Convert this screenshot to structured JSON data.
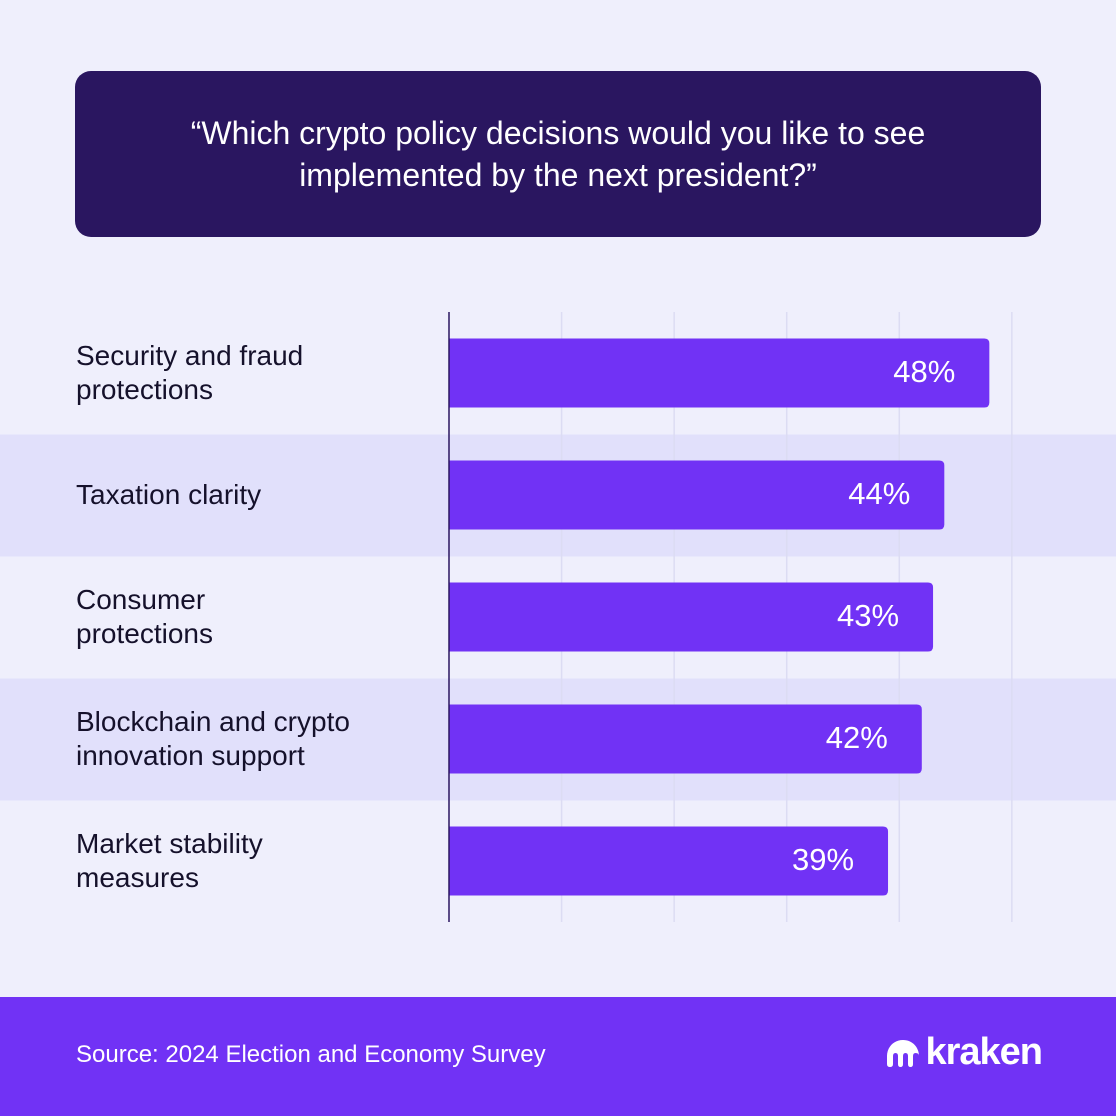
{
  "chart_data": {
    "type": "bar",
    "orientation": "horizontal",
    "title": "“Which crypto policy decisions would you like to see implemented by the next president?”",
    "categories": [
      "Security and fraud\nprotections",
      "Taxation clarity",
      "Consumer\nprotections",
      "Blockchain and crypto\ninnovation support",
      "Market stability\nmeasures"
    ],
    "values": [
      48,
      44,
      43,
      42,
      39
    ],
    "value_labels": [
      "48%",
      "44%",
      "43%",
      "42%",
      "39%"
    ],
    "color": "#7132f5",
    "xlim": [
      0,
      52.5
    ],
    "xticks": [
      10,
      20,
      30,
      40,
      50
    ],
    "grid": true,
    "source": "Source: 2024 Election and Economy Survey",
    "brand": "kraken"
  }
}
